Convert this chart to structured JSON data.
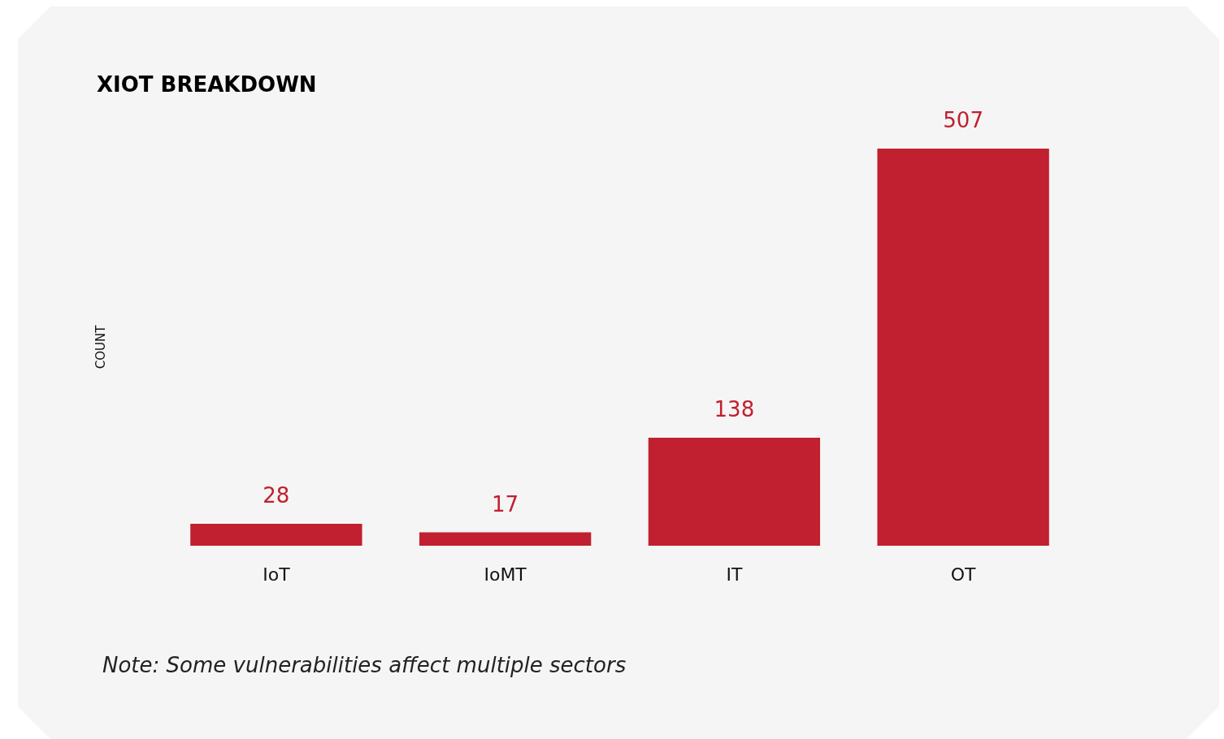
{
  "chart_data": {
    "type": "bar",
    "title": "XIOT BREAKDOWN",
    "ylabel": "COUNT",
    "categories": [
      "IoT",
      "IoMT",
      "IT",
      "OT"
    ],
    "values": [
      28,
      17,
      138,
      507
    ],
    "color": "#c0202f",
    "data_labels": true,
    "grid": false,
    "annotations": [
      "Note: Some vulnerabilities affect multiple sectors"
    ]
  }
}
